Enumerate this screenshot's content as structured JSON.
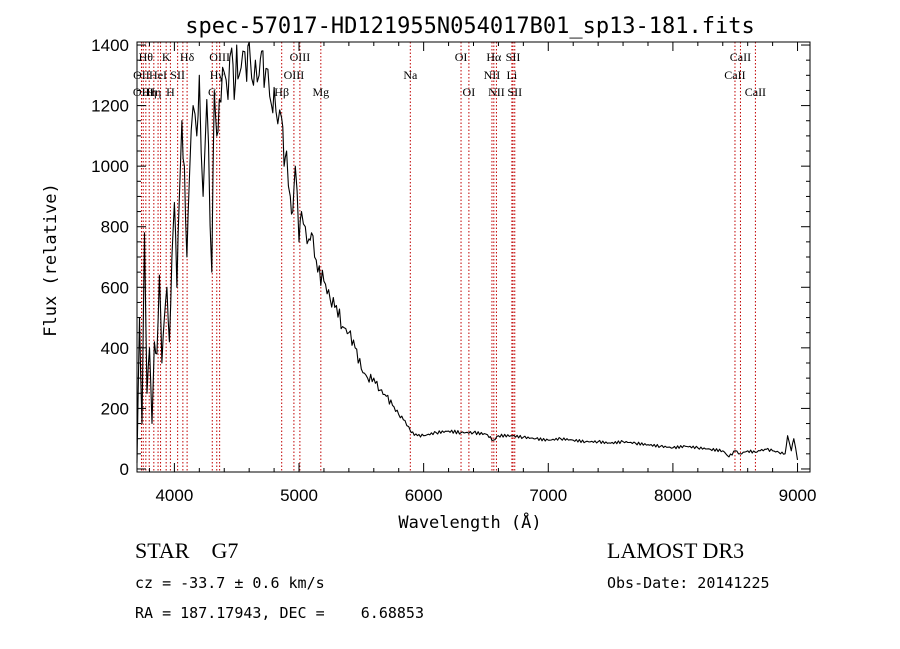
{
  "chart_data": {
    "type": "line",
    "title": "spec-57017-HD121955N054017B01_sp13-181.fits",
    "xlabel": "Wavelength (Å)",
    "ylabel": "Flux (relative)",
    "xlim": [
      3700,
      9100
    ],
    "ylim": [
      -10,
      1410
    ],
    "xticks": [
      4000,
      5000,
      6000,
      7000,
      8000,
      9000
    ],
    "yticks": [
      0,
      200,
      400,
      600,
      800,
      1000,
      1200,
      1400
    ],
    "series": [
      {
        "name": "spectrum",
        "x": [
          3700,
          3720,
          3740,
          3760,
          3780,
          3800,
          3820,
          3840,
          3860,
          3880,
          3900,
          3920,
          3940,
          3960,
          3980,
          4000,
          4020,
          4040,
          4060,
          4080,
          4100,
          4120,
          4150,
          4180,
          4200,
          4230,
          4260,
          4300,
          4320,
          4340,
          4360,
          4400,
          4430,
          4460,
          4480,
          4500,
          4520,
          4550,
          4580,
          4600,
          4620,
          4650,
          4680,
          4700,
          4720,
          4750,
          4780,
          4800,
          4830,
          4860,
          4880,
          4900,
          4930,
          4950,
          4970,
          5000,
          5020,
          5050,
          5080,
          5100,
          5150,
          5200,
          5250,
          5300,
          5350,
          5400,
          5450,
          5500,
          5550,
          5600,
          5650,
          5700,
          5750,
          5800,
          5850,
          5880,
          5900,
          5950,
          6000,
          6100,
          6200,
          6300,
          6400,
          6500,
          6560,
          6600,
          6700,
          6800,
          6900,
          7000,
          7100,
          7200,
          7300,
          7400,
          7500,
          7600,
          7700,
          7800,
          7900,
          8000,
          8100,
          8200,
          8300,
          8400,
          8450,
          8500,
          8540,
          8600,
          8660,
          8700,
          8750,
          8800,
          8850,
          8900,
          8920,
          8950,
          8970,
          9000
        ],
        "y": [
          20,
          500,
          150,
          780,
          250,
          400,
          150,
          420,
          380,
          640,
          350,
          500,
          600,
          420,
          700,
          880,
          600,
          900,
          1150,
          1000,
          700,
          950,
          1200,
          1100,
          1300,
          900,
          1220,
          650,
          1250,
          1100,
          1220,
          1310,
          1220,
          1390,
          1220,
          1400,
          1300,
          1380,
          1280,
          1410,
          1290,
          1350,
          1300,
          1380,
          1260,
          1320,
          1200,
          1260,
          1140,
          1160,
          1000,
          1050,
          900,
          850,
          1000,
          750,
          850,
          800,
          760,
          780,
          650,
          620,
          560,
          540,
          470,
          450,
          400,
          330,
          300,
          300,
          260,
          240,
          210,
          180,
          160,
          140,
          120,
          110,
          110,
          120,
          125,
          120,
          120,
          115,
          95,
          110,
          110,
          105,
          100,
          95,
          100,
          95,
          90,
          90,
          85,
          90,
          85,
          80,
          75,
          70,
          75,
          70,
          65,
          60,
          40,
          60,
          50,
          60,
          55,
          60,
          65,
          60,
          55,
          50,
          110,
          60,
          100,
          30
        ]
      }
    ],
    "lines": [
      {
        "wl": 3736,
        "label": "OII",
        "row": 2
      },
      {
        "wl": 3750,
        "label": "OIII",
        "row": 3
      },
      {
        "wl": 3771,
        "label": "Hθ",
        "row": 1
      },
      {
        "wl": 3798,
        "label": "Hη",
        "row": 3
      },
      {
        "wl": 3835,
        "label": "Hη",
        "row": 3
      },
      {
        "wl": 3869,
        "label": "HeI",
        "row": 2
      },
      {
        "wl": 3889,
        "label": "",
        "row": 0
      },
      {
        "wl": 3934,
        "label": "K",
        "row": 1
      },
      {
        "wl": 3968,
        "label": "H",
        "row": 3
      },
      {
        "wl": 4026,
        "label": "SII",
        "row": 2
      },
      {
        "wl": 4068,
        "label": "",
        "row": 0
      },
      {
        "wl": 4102,
        "label": "Hδ",
        "row": 1
      },
      {
        "wl": 4304,
        "label": "G",
        "row": 3
      },
      {
        "wl": 4340,
        "label": "Hγ",
        "row": 2
      },
      {
        "wl": 4363,
        "label": "OIII",
        "row": 1
      },
      {
        "wl": 4861,
        "label": "Hβ",
        "row": 3
      },
      {
        "wl": 4959,
        "label": "OIII",
        "row": 2
      },
      {
        "wl": 5007,
        "label": "OIII",
        "row": 1
      },
      {
        "wl": 5175,
        "label": "Mg",
        "row": 3
      },
      {
        "wl": 5893,
        "label": "Na",
        "row": 2
      },
      {
        "wl": 6300,
        "label": "OI",
        "row": 1
      },
      {
        "wl": 6363,
        "label": "OI",
        "row": 3
      },
      {
        "wl": 6548,
        "label": "NII",
        "row": 2
      },
      {
        "wl": 6563,
        "label": "Hα",
        "row": 1
      },
      {
        "wl": 6584,
        "label": "NII",
        "row": 3
      },
      {
        "wl": 6708,
        "label": "Li",
        "row": 2
      },
      {
        "wl": 6717,
        "label": "SII",
        "row": 1
      },
      {
        "wl": 6731,
        "label": "SII",
        "row": 3
      },
      {
        "wl": 8498,
        "label": "CaII",
        "row": 2
      },
      {
        "wl": 8542,
        "label": "CaII",
        "row": 1
      },
      {
        "wl": 8662,
        "label": "CaII",
        "row": 3
      }
    ]
  },
  "info": {
    "object": "STAR    G7",
    "survey": "LAMOST DR3",
    "cz": "cz = -33.7 ± 0.6 km/s",
    "obs_date": "Obs-Date: 20141225",
    "radec": "RA = 187.17943, DEC =    6.68853"
  }
}
